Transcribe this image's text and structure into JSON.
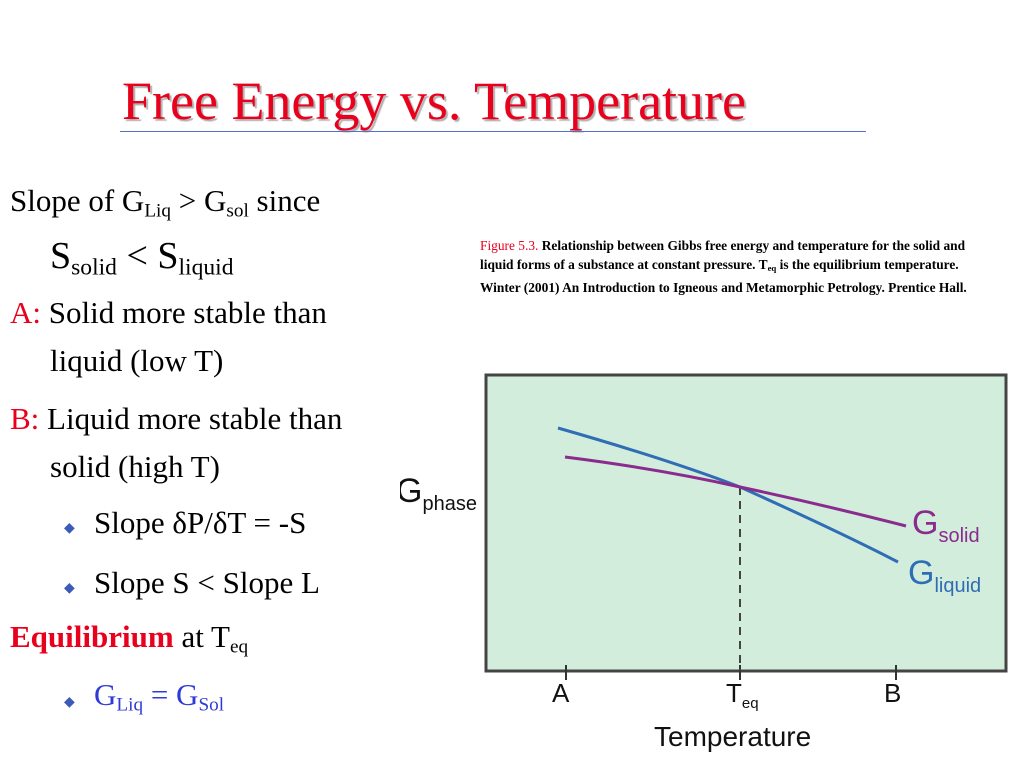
{
  "title": "Free Energy vs. Temperature",
  "text": {
    "l1_a": "Slope of G",
    "l1_sub1": "Liq",
    "l1_b": " > G",
    "l1_sub2": "sol",
    "l1_c": " since",
    "l2_a": "S",
    "l2_sub1": "solid",
    "l2_b": " < S",
    "l2_sub2": "liquid",
    "a_label": "A:",
    "a_text": " Solid more stable than",
    "a_cont": "liquid (low T)",
    "b_label": "B:",
    "b_text": " Liquid more stable than",
    "b_cont": "solid (high T)",
    "bullet1": "Slope  δP/δT = -S",
    "bullet2": "Slope S < Slope L",
    "eq_label": "Equilibrium",
    "eq_text": " at T",
    "eq_sub": "eq",
    "b3_a": "G",
    "b3_sub1": "Liq",
    "b3_b": " = G",
    "b3_sub2": "Sol"
  },
  "caption": {
    "lead": "Figure 5.3.",
    "text1": " Relationship between Gibbs free energy and temperature for the solid and liquid forms of a substance at constant pressure. T",
    "sub": "eq",
    "text2": " is the equilibrium temperature.  Winter (2001) An Introduction to Igneous and Metamorphic Petrology. Prentice Hall."
  },
  "figure": {
    "ylabel_main": "G",
    "ylabel_sub": "phase",
    "xlabel": "Temperature",
    "ticks": [
      "A",
      "T",
      "B"
    ],
    "tick_sub": "eq",
    "solid_main": "G",
    "solid_sub": "solid",
    "liquid_main": "G",
    "liquid_sub": "liquid",
    "colors": {
      "background": "#d3eddc",
      "solid": "#8a2b8e",
      "liquid": "#2f6db5",
      "label_solid": "#8a2b8e",
      "label_liquid": "#2f6db5"
    }
  }
}
